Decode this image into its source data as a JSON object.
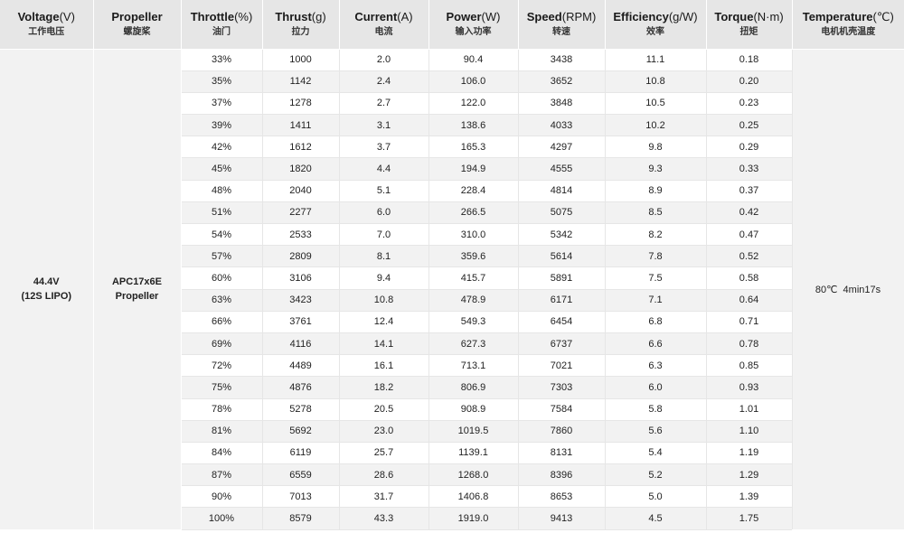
{
  "headers": [
    {
      "en": "Voltage",
      "unit": "(V)",
      "zh": "工作电压"
    },
    {
      "en": "Propeller",
      "unit": "",
      "zh": "螺旋桨"
    },
    {
      "en": "Throttle",
      "unit": "(%)",
      "zh": "油门"
    },
    {
      "en": "Thrust",
      "unit": "(g)",
      "zh": "拉力"
    },
    {
      "en": "Current",
      "unit": "(A)",
      "zh": "电流"
    },
    {
      "en": "Power",
      "unit": "(W)",
      "zh": "输入功率"
    },
    {
      "en": "Speed",
      "unit": "(RPM)",
      "zh": "转速"
    },
    {
      "en": "Efficiency",
      "unit": "(g/W)",
      "zh": "效率"
    },
    {
      "en": "Torque",
      "unit": "(N·m)",
      "zh": "扭矩"
    },
    {
      "en": "Temperature",
      "unit": "(℃)",
      "zh": "电机机壳温度"
    }
  ],
  "voltage": {
    "line1": "44.4V",
    "line2": "(12S LIPO)"
  },
  "propeller": {
    "line1": "APC17x6E",
    "line2": "Propeller"
  },
  "temperature": "80℃  4min17s",
  "rows": [
    [
      "33%",
      "1000",
      "2.0",
      "90.4",
      "3438",
      "11.1",
      "0.18"
    ],
    [
      "35%",
      "1142",
      "2.4",
      "106.0",
      "3652",
      "10.8",
      "0.20"
    ],
    [
      "37%",
      "1278",
      "2.7",
      "122.0",
      "3848",
      "10.5",
      "0.23"
    ],
    [
      "39%",
      "1411",
      "3.1",
      "138.6",
      "4033",
      "10.2",
      "0.25"
    ],
    [
      "42%",
      "1612",
      "3.7",
      "165.3",
      "4297",
      "9.8",
      "0.29"
    ],
    [
      "45%",
      "1820",
      "4.4",
      "194.9",
      "4555",
      "9.3",
      "0.33"
    ],
    [
      "48%",
      "2040",
      "5.1",
      "228.4",
      "4814",
      "8.9",
      "0.37"
    ],
    [
      "51%",
      "2277",
      "6.0",
      "266.5",
      "5075",
      "8.5",
      "0.42"
    ],
    [
      "54%",
      "2533",
      "7.0",
      "310.0",
      "5342",
      "8.2",
      "0.47"
    ],
    [
      "57%",
      "2809",
      "8.1",
      "359.6",
      "5614",
      "7.8",
      "0.52"
    ],
    [
      "60%",
      "3106",
      "9.4",
      "415.7",
      "5891",
      "7.5",
      "0.58"
    ],
    [
      "63%",
      "3423",
      "10.8",
      "478.9",
      "6171",
      "7.1",
      "0.64"
    ],
    [
      "66%",
      "3761",
      "12.4",
      "549.3",
      "6454",
      "6.8",
      "0.71"
    ],
    [
      "69%",
      "4116",
      "14.1",
      "627.3",
      "6737",
      "6.6",
      "0.78"
    ],
    [
      "72%",
      "4489",
      "16.1",
      "713.1",
      "7021",
      "6.3",
      "0.85"
    ],
    [
      "75%",
      "4876",
      "18.2",
      "806.9",
      "7303",
      "6.0",
      "0.93"
    ],
    [
      "78%",
      "5278",
      "20.5",
      "908.9",
      "7584",
      "5.8",
      "1.01"
    ],
    [
      "81%",
      "5692",
      "23.0",
      "1019.5",
      "7860",
      "5.6",
      "1.10"
    ],
    [
      "84%",
      "6119",
      "25.7",
      "1139.1",
      "8131",
      "5.4",
      "1.19"
    ],
    [
      "87%",
      "6559",
      "28.6",
      "1268.0",
      "8396",
      "5.2",
      "1.29"
    ],
    [
      "90%",
      "7013",
      "31.7",
      "1406.8",
      "8653",
      "5.0",
      "1.39"
    ],
    [
      "100%",
      "8579",
      "43.3",
      "1919.0",
      "9413",
      "4.5",
      "1.75"
    ]
  ]
}
